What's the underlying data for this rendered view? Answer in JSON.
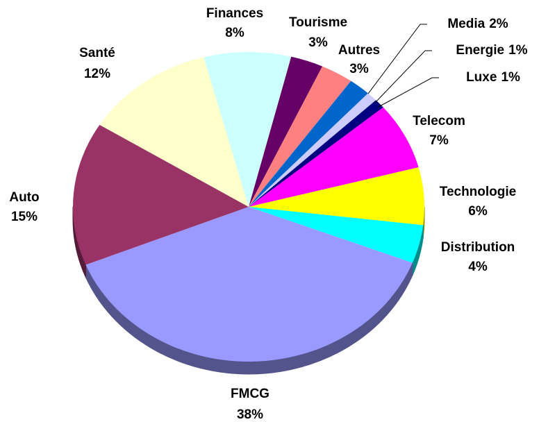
{
  "chart_data": {
    "type": "pie",
    "categories": [
      "Tourisme",
      "Autres",
      "Media",
      "Energie",
      "Luxe",
      "Telecom",
      "Technologie",
      "Distribution",
      "FMCG",
      "Auto",
      "Santé",
      "Finances"
    ],
    "values": [
      3,
      3,
      2,
      1,
      1,
      7,
      6,
      4,
      38,
      15,
      12,
      8
    ],
    "value_labels": [
      "3%",
      "3%",
      "2%",
      "1%",
      "1%",
      "7%",
      "6%",
      "4%",
      "38%",
      "15%",
      "12%",
      "8%"
    ],
    "colors": [
      "#660066",
      "#ff8080",
      "#0066cc",
      "#ccccff",
      "#000080",
      "#ff00ff",
      "#ffff00",
      "#00ffff",
      "#9999ff",
      "#993366",
      "#ffffcc",
      "#ccffff"
    ]
  }
}
